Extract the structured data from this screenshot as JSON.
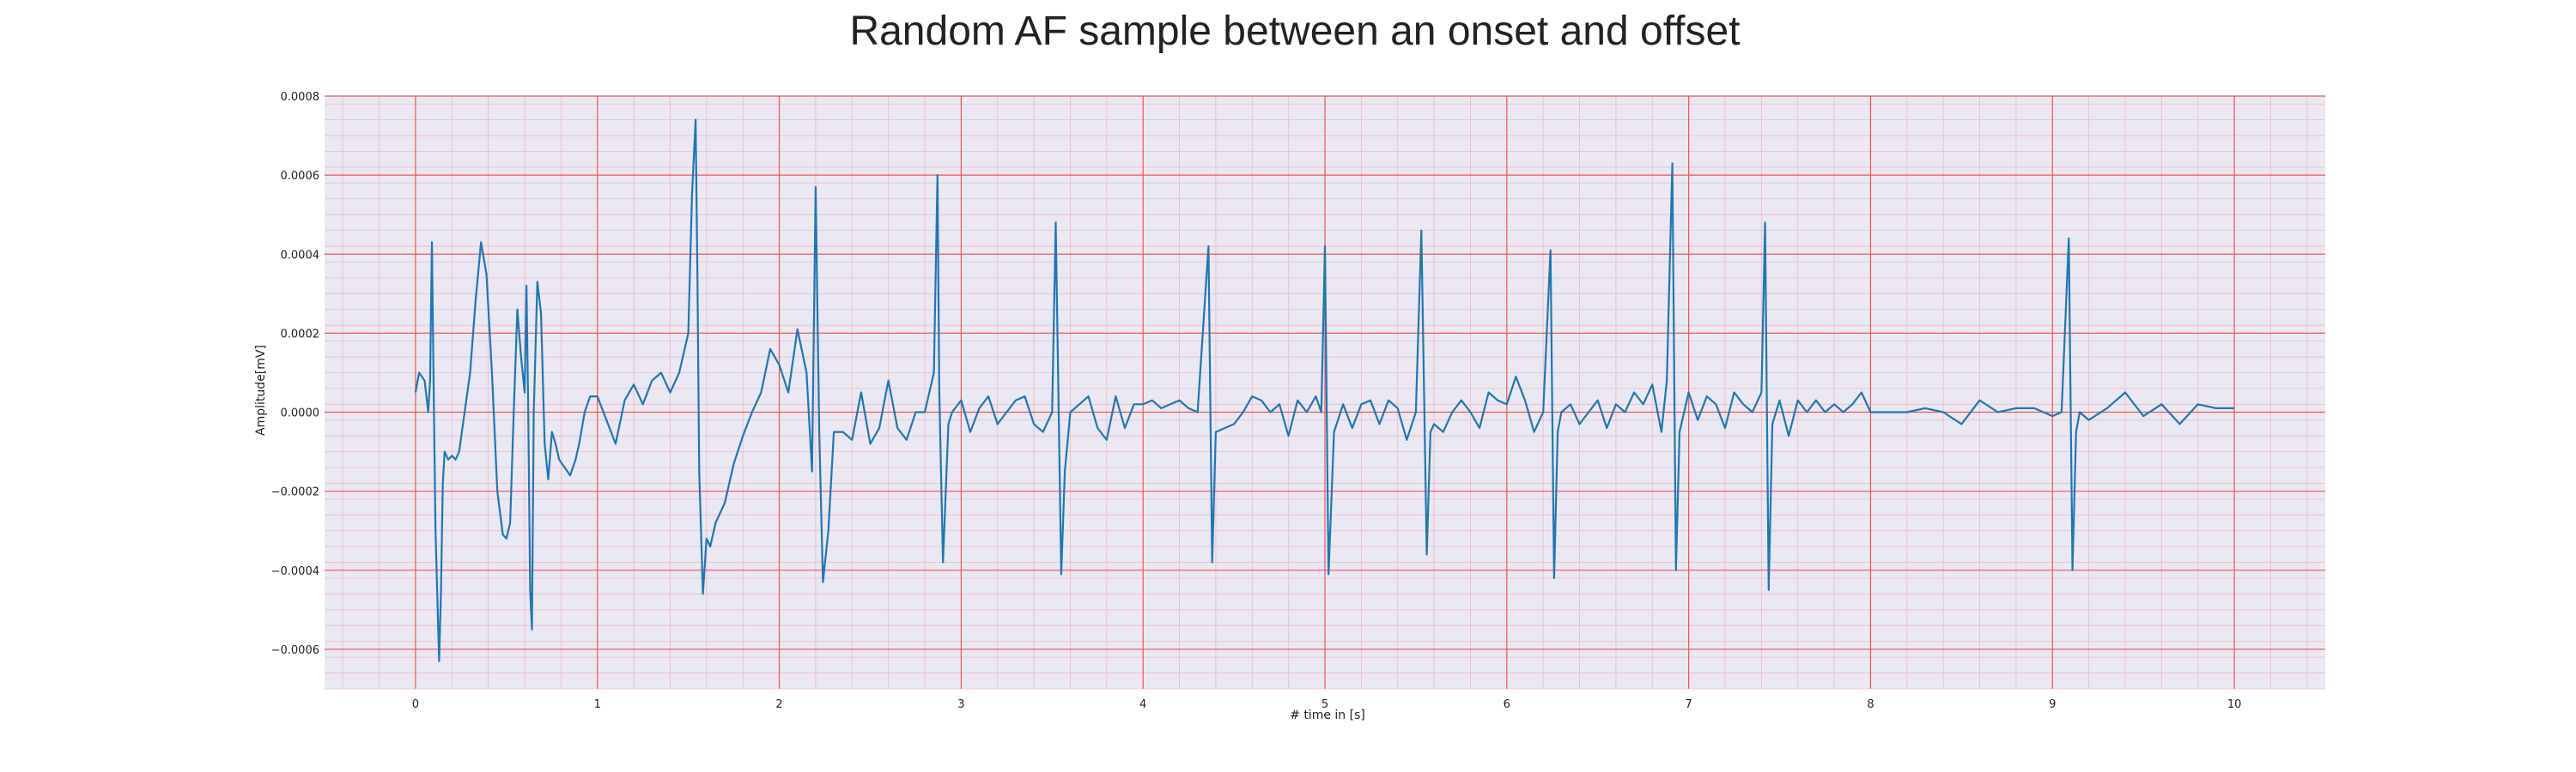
{
  "chart_data": {
    "type": "line",
    "title": "Random AF sample between an onset and offset",
    "xlabel": "# time in [s]",
    "ylabel": "Amplitude[mV]",
    "xlim": [
      -0.5,
      10.5
    ],
    "ylim": [
      -0.0007,
      0.0008
    ],
    "x_ticks": [
      0,
      1,
      2,
      3,
      4,
      5,
      6,
      7,
      8,
      9,
      10
    ],
    "x_tick_labels": [
      "0",
      "1",
      "2",
      "3",
      "4",
      "5",
      "6",
      "7",
      "8",
      "9",
      "10"
    ],
    "y_ticks": [
      -0.0006,
      -0.0004,
      -0.0002,
      0.0,
      0.0002,
      0.0004,
      0.0006,
      0.0008
    ],
    "y_tick_labels": [
      "−0.0006",
      "−0.0004",
      "−0.0002",
      "0.0000",
      "0.0002",
      "0.0004",
      "0.0006",
      "0.0008"
    ],
    "grid": true,
    "colors": {
      "line": "#1f77b4",
      "background": "#eae8f2",
      "major_grid": "#ee5555",
      "minor_grid": "#f2b8c0"
    },
    "series": [
      {
        "x": [
          0,
          0.02,
          0.05,
          0.07,
          0.08,
          0.09,
          0.1,
          0.11,
          0.13,
          0.14,
          0.15,
          0.16,
          0.18,
          0.2,
          0.22,
          0.24,
          0.27,
          0.3,
          0.33,
          0.36,
          0.39,
          0.42,
          0.45,
          0.48,
          0.5,
          0.52,
          0.54,
          0.56,
          0.58,
          0.6,
          0.61,
          0.62,
          0.63,
          0.64,
          0.65,
          0.67,
          0.69,
          0.71,
          0.73,
          0.75,
          0.77,
          0.79,
          0.82,
          0.85,
          0.88,
          0.9,
          0.93,
          0.96,
          1.0,
          1.05,
          1.1,
          1.15,
          1.2,
          1.25,
          1.3,
          1.35,
          1.4,
          1.45,
          1.5,
          1.52,
          1.54,
          1.55,
          1.56,
          1.58,
          1.6,
          1.62,
          1.65,
          1.7,
          1.75,
          1.8,
          1.85,
          1.9,
          1.95,
          2.0,
          2.05,
          2.1,
          2.15,
          2.18,
          2.2,
          2.22,
          2.24,
          2.27,
          2.3,
          2.35,
          2.4,
          2.45,
          2.5,
          2.55,
          2.6,
          2.65,
          2.7,
          2.75,
          2.8,
          2.85,
          2.87,
          2.88,
          2.9,
          2.93,
          2.95,
          3.0,
          3.05,
          3.1,
          3.15,
          3.2,
          3.25,
          3.3,
          3.35,
          3.4,
          3.45,
          3.5,
          3.52,
          3.55,
          3.57,
          3.6,
          3.65,
          3.7,
          3.75,
          3.8,
          3.85,
          3.9,
          3.95,
          4.0,
          4.05,
          4.1,
          4.15,
          4.2,
          4.25,
          4.3,
          4.36,
          4.38,
          4.4,
          4.45,
          4.5,
          4.55,
          4.6,
          4.65,
          4.7,
          4.75,
          4.8,
          4.85,
          4.9,
          4.95,
          4.98,
          5.0,
          5.02,
          5.05,
          5.1,
          5.15,
          5.2,
          5.25,
          5.3,
          5.35,
          5.4,
          5.45,
          5.5,
          5.53,
          5.56,
          5.58,
          5.6,
          5.65,
          5.7,
          5.75,
          5.8,
          5.85,
          5.9,
          5.95,
          6.0,
          6.05,
          6.1,
          6.15,
          6.2,
          6.24,
          6.26,
          6.28,
          6.3,
          6.35,
          6.4,
          6.45,
          6.5,
          6.55,
          6.6,
          6.65,
          6.7,
          6.75,
          6.8,
          6.85,
          6.88,
          6.91,
          6.93,
          6.95,
          7.0,
          7.05,
          7.1,
          7.15,
          7.2,
          7.25,
          7.3,
          7.35,
          7.4,
          7.42,
          7.44,
          7.46,
          7.48,
          7.5,
          7.55,
          7.6,
          7.65,
          7.7,
          7.75,
          7.8,
          7.85,
          7.9,
          7.95,
          8.0,
          8.1,
          8.2,
          8.3,
          8.4,
          8.5,
          8.6,
          8.7,
          8.8,
          8.9,
          9.0,
          9.05,
          9.09,
          9.11,
          9.13,
          9.15,
          9.2,
          9.3,
          9.4,
          9.5,
          9.6,
          9.7,
          9.8,
          9.9,
          10.0
        ],
        "y": [
          5e-05,
          0.0001,
          8e-05,
          0.0,
          8e-05,
          0.00043,
          5e-05,
          -0.0003,
          -0.00063,
          -0.00045,
          -0.00018,
          -0.0001,
          -0.00012,
          -0.00011,
          -0.00012,
          -0.0001,
          0.0,
          0.0001,
          0.00028,
          0.00043,
          0.00035,
          0.0001,
          -0.0002,
          -0.00031,
          -0.00032,
          -0.00028,
          0.0,
          0.00026,
          0.00014,
          5e-05,
          0.00032,
          0.0,
          -0.00045,
          -0.00055,
          0.0,
          0.00033,
          0.00025,
          -8e-05,
          -0.00017,
          -5e-05,
          -8e-05,
          -0.00012,
          -0.00014,
          -0.00016,
          -0.00012,
          -8e-05,
          0.0,
          4e-05,
          4e-05,
          -2e-05,
          -8e-05,
          3e-05,
          7e-05,
          2e-05,
          8e-05,
          0.0001,
          5e-05,
          0.0001,
          0.0002,
          0.00055,
          0.00074,
          0.00035,
          -0.00015,
          -0.00046,
          -0.00032,
          -0.00034,
          -0.00028,
          -0.00023,
          -0.00013,
          -6e-05,
          0.0,
          5e-05,
          0.00016,
          0.00012,
          5e-05,
          0.00021,
          0.0001,
          -0.00015,
          0.00057,
          -5e-05,
          -0.00043,
          -0.0003,
          -5e-05,
          -5e-05,
          -7e-05,
          5e-05,
          -8e-05,
          -4e-05,
          8e-05,
          -4e-05,
          -7e-05,
          0.0,
          0.0,
          0.0001,
          0.0006,
          5e-05,
          -0.00038,
          -3e-05,
          0.0,
          3e-05,
          -5e-05,
          1e-05,
          4e-05,
          -3e-05,
          0.0,
          3e-05,
          4e-05,
          -3e-05,
          -5e-05,
          0.0,
          0.00048,
          -0.00041,
          -0.00015,
          0.0,
          2e-05,
          4e-05,
          -4e-05,
          -7e-05,
          4e-05,
          -4e-05,
          2e-05,
          2e-05,
          3e-05,
          1e-05,
          2e-05,
          3e-05,
          1e-05,
          0.0,
          0.00042,
          -0.00038,
          -5e-05,
          -4e-05,
          -3e-05,
          0.0,
          4e-05,
          3e-05,
          0.0,
          2e-05,
          -6e-05,
          3e-05,
          0.0,
          4e-05,
          0.0,
          0.00042,
          -0.00041,
          -5e-05,
          2e-05,
          -4e-05,
          2e-05,
          3e-05,
          -3e-05,
          3e-05,
          1e-05,
          -7e-05,
          0.0,
          0.00046,
          -0.00036,
          -5e-05,
          -3e-05,
          -5e-05,
          0.0,
          3e-05,
          0.0,
          -4e-05,
          5e-05,
          3e-05,
          2e-05,
          9e-05,
          3e-05,
          -5e-05,
          0.0,
          0.00041,
          -0.00042,
          -5e-05,
          0.0,
          2e-05,
          -3e-05,
          0.0,
          3e-05,
          -4e-05,
          2e-05,
          0.0,
          5e-05,
          2e-05,
          7e-05,
          -5e-05,
          8e-05,
          0.00063,
          -0.0004,
          -5e-05,
          5e-05,
          -2e-05,
          4e-05,
          2e-05,
          -4e-05,
          5e-05,
          2e-05,
          0.0,
          5e-05,
          0.00048,
          -0.00045,
          -3e-05,
          0.0,
          3e-05,
          -6e-05,
          3e-05,
          0.0,
          3e-05,
          0.0,
          2e-05,
          0.0,
          2e-05,
          5e-05,
          0.0,
          0.0,
          0.0,
          1e-05,
          0.0,
          -3e-05,
          3e-05,
          0.0,
          1e-05,
          1e-05,
          -1e-05,
          0.0,
          0.00044,
          -0.0004,
          -5e-05,
          0.0,
          -2e-05,
          1e-05,
          5e-05,
          -1e-05,
          2e-05,
          -3e-05,
          2e-05,
          1e-05,
          1e-05
        ]
      }
    ]
  }
}
